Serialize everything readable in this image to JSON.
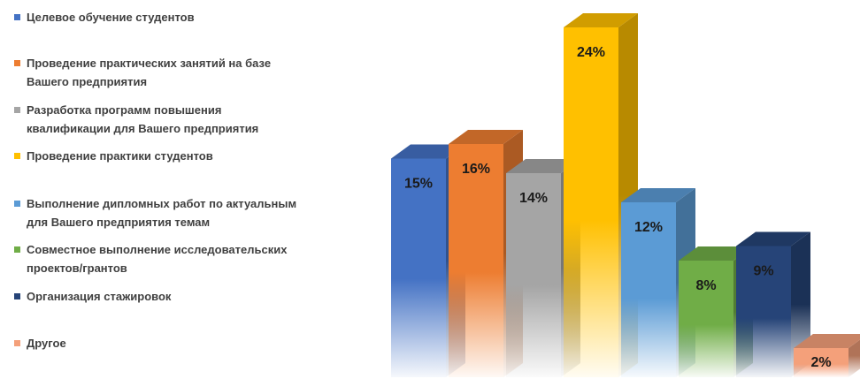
{
  "chart_data": {
    "type": "bar",
    "title": "",
    "xlabel": "",
    "ylabel": "",
    "categories": [
      "Целевое обучение студентов",
      "Проведение практических занятий на базе\nВашего предприятия",
      "Разработка  программ повышения\nквалификации для Вашего предприятия",
      "Проведение практики студентов",
      "Выполнение дипломных работ по актуальным\nдля Вашего предприятия темам",
      "Совместное выполнение исследовательских\nпроектов/грантов",
      "Организация стажировок",
      "Другое"
    ],
    "values": [
      15,
      16,
      14,
      24,
      12,
      8,
      9,
      2
    ],
    "value_labels": [
      "15%",
      "16%",
      "14%",
      "24%",
      "12%",
      "8%",
      "9%",
      "2%"
    ],
    "ylim": [
      0,
      25
    ],
    "grid": false,
    "legend_position": "left",
    "colors": [
      "#4472C4",
      "#ED7D31",
      "#A5A5A5",
      "#FFC000",
      "#5B9BD5",
      "#70AD47",
      "#264478",
      "#F4A07A"
    ]
  }
}
